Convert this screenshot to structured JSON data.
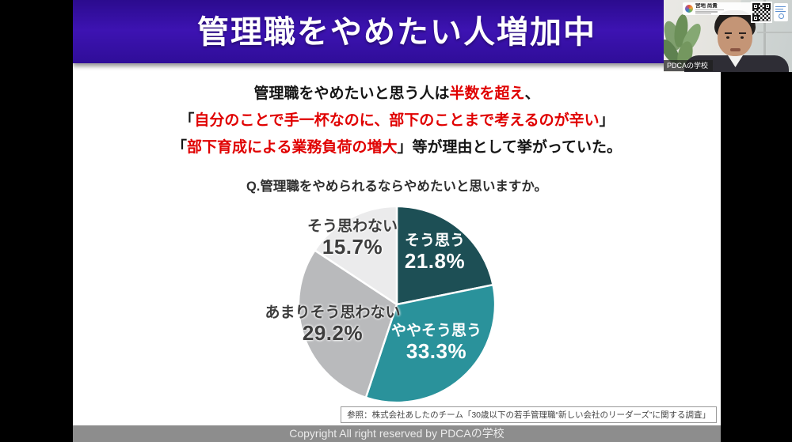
{
  "slide": {
    "title": "管理職をやめたい人増加中",
    "accent_red": "#e00000",
    "header_color": "#3d13b2",
    "lead_lines": [
      {
        "segments": [
          {
            "text": "管理職をやめたいと思う人は",
            "red": false
          },
          {
            "text": "半数を超え",
            "red": true
          },
          {
            "text": "、",
            "red": false
          }
        ]
      },
      {
        "segments": [
          {
            "text": "「",
            "red": false
          },
          {
            "text": "自分のことで手一杯なのに、部下のことまで考えるのが辛い",
            "red": true
          },
          {
            "text": "」",
            "red": false
          }
        ]
      },
      {
        "segments": [
          {
            "text": "「",
            "red": false
          },
          {
            "text": "部下育成による業務負荷の増大",
            "red": true
          },
          {
            "text": "」等が理由として挙がっていた。",
            "red": false
          }
        ]
      }
    ],
    "source": "参照：株式会社あしたのチーム「30歳以下の若手管理職“新しい会社のリーダーズ”に関する調査」",
    "copyright": "Copyright All right reserved by PDCAの学校"
  },
  "chart_data": {
    "type": "pie",
    "title": "Q.管理職をやめられるならやめたいと思いますか。",
    "categories": [
      "そう思う",
      "ややそう思う",
      "あまりそう思わない",
      "そう思わない"
    ],
    "values": [
      21.8,
      33.3,
      29.2,
      15.7
    ],
    "unit": "%",
    "colors": [
      "#1d4f55",
      "#2a929b",
      "#b9babc",
      "#ebebec"
    ],
    "start_angle_deg": 0,
    "direction": "clockwise",
    "legend": "labels on slices",
    "slice_labels": [
      {
        "text": "そう思う",
        "pct": "21.8%",
        "placement": "inside"
      },
      {
        "text": "ややそう思う",
        "pct": "33.3%",
        "placement": "inside"
      },
      {
        "text": "あまりそう思わない",
        "pct": "29.2%",
        "placement": "outside"
      },
      {
        "text": "そう思わない",
        "pct": "15.7%",
        "placement": "outside"
      }
    ]
  },
  "webcam": {
    "participant_label": "PDCAの学校",
    "name_card_name": "宮地 尚貴"
  }
}
